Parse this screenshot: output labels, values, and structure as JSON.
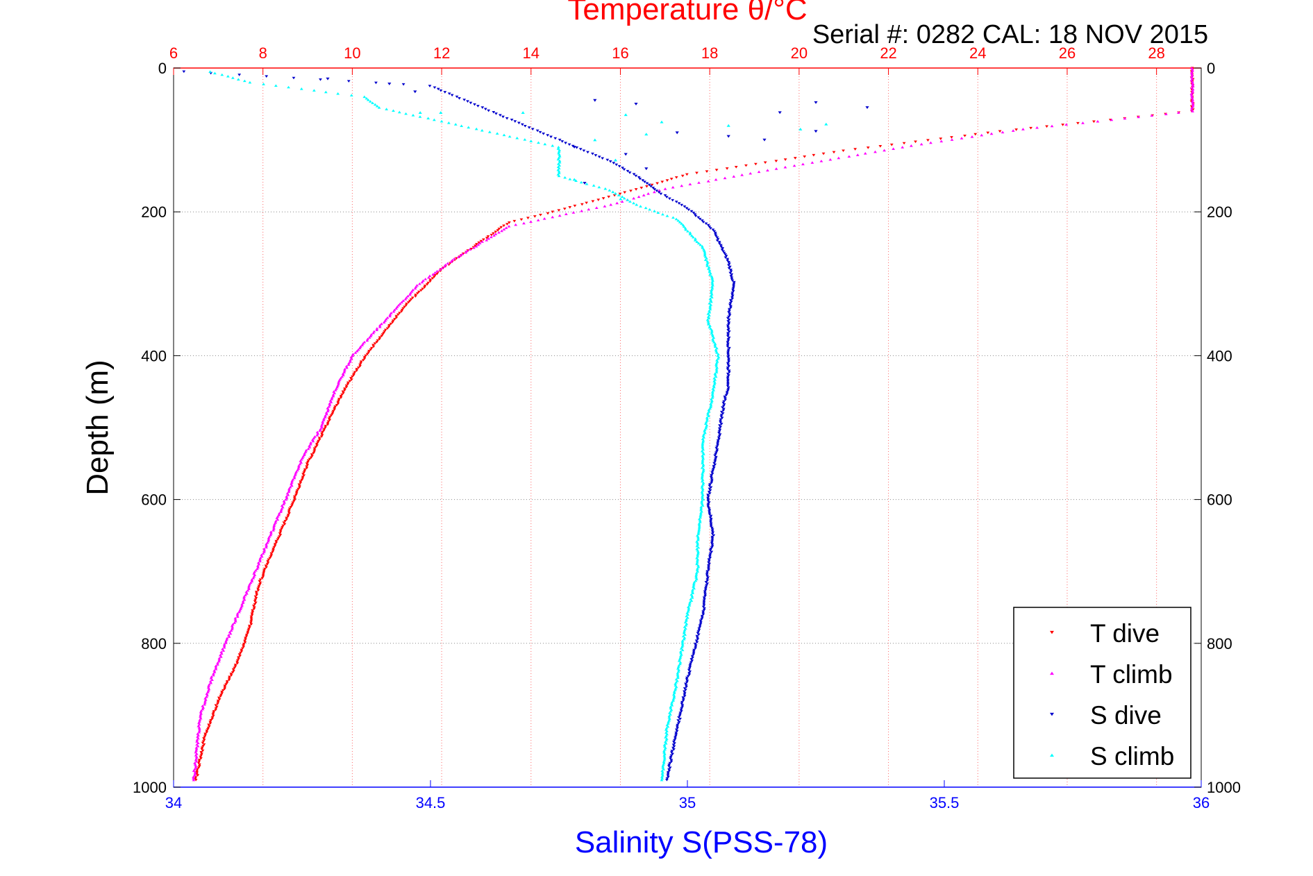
{
  "serial_label": "Serial #: 0282  CAL: 18 NOV 2015",
  "colors": {
    "temperature_axis": "#ff0000",
    "salinity_axis": "#0000ff",
    "t_dive": "#ff0000",
    "t_climb": "#ff00ff",
    "s_dive": "#0000cc",
    "s_climb": "#00ffff",
    "grid": "#888888"
  },
  "chart_data": {
    "type": "scatter",
    "title": "Temperature θ/°C",
    "ylabel": "Depth (m)",
    "xlabel_bottom": "Salinity S(PSS-78)",
    "xlabel_top": "Temperature θ/°C",
    "y_reversed": true,
    "ylim": [
      0,
      1000
    ],
    "xlim_bottom": [
      34,
      36
    ],
    "xlim_top": [
      6,
      29
    ],
    "yticks": [
      "0",
      "200",
      "400",
      "600",
      "800",
      "1000"
    ],
    "xticks_bottom": [
      "34",
      "34.5",
      "35",
      "35.5",
      "36"
    ],
    "xticks_top": [
      "6",
      "8",
      "10",
      "12",
      "14",
      "16",
      "18",
      "20",
      "22",
      "24",
      "26",
      "28"
    ],
    "grid": true,
    "legend_position": "bottom-right",
    "series": [
      {
        "name": "T dive",
        "axis": "temperature",
        "marker": "triangle-down",
        "points": [
          [
            28.8,
            0
          ],
          [
            28.8,
            20
          ],
          [
            28.8,
            40
          ],
          [
            28.8,
            60
          ],
          [
            27.3,
            70
          ],
          [
            24.5,
            88
          ],
          [
            21.0,
            115
          ],
          [
            17.5,
            148
          ],
          [
            16.0,
            175
          ],
          [
            14.5,
            200
          ],
          [
            13.5,
            215
          ],
          [
            12.8,
            245
          ],
          [
            12.0,
            280
          ],
          [
            11.2,
            330
          ],
          [
            10.8,
            360
          ],
          [
            10.3,
            400
          ],
          [
            9.8,
            450
          ],
          [
            9.4,
            500
          ],
          [
            9.0,
            550
          ],
          [
            8.7,
            600
          ],
          [
            8.3,
            660
          ],
          [
            7.9,
            720
          ],
          [
            7.7,
            780
          ],
          [
            7.4,
            830
          ],
          [
            7.0,
            880
          ],
          [
            6.7,
            930
          ],
          [
            6.5,
            990
          ]
        ]
      },
      {
        "name": "T climb",
        "axis": "temperature",
        "marker": "triangle-up",
        "points": [
          [
            28.8,
            0
          ],
          [
            28.8,
            40
          ],
          [
            28.8,
            60
          ],
          [
            27.0,
            72
          ],
          [
            25.0,
            85
          ],
          [
            22.5,
            108
          ],
          [
            19.5,
            140
          ],
          [
            17.0,
            168
          ],
          [
            15.8,
            190
          ],
          [
            14.8,
            203
          ],
          [
            13.5,
            220
          ],
          [
            12.3,
            265
          ],
          [
            11.5,
            300
          ],
          [
            10.6,
            360
          ],
          [
            10.0,
            400
          ],
          [
            9.6,
            450
          ],
          [
            9.3,
            500
          ],
          [
            8.9,
            540
          ],
          [
            8.5,
            600
          ],
          [
            8.1,
            660
          ],
          [
            7.7,
            720
          ],
          [
            7.3,
            780
          ],
          [
            6.9,
            840
          ],
          [
            6.6,
            900
          ],
          [
            6.45,
            990
          ]
        ]
      },
      {
        "name": "S dive",
        "axis": "salinity",
        "marker": "triangle-down",
        "points": [
          [
            34.02,
            5
          ],
          [
            34.5,
            25
          ],
          [
            34.85,
            130
          ],
          [
            34.9,
            150
          ],
          [
            34.95,
            175
          ],
          [
            35.0,
            195
          ],
          [
            35.05,
            225
          ],
          [
            35.08,
            270
          ],
          [
            35.09,
            300
          ],
          [
            35.08,
            350
          ],
          [
            35.08,
            400
          ],
          [
            35.08,
            440
          ],
          [
            35.07,
            470
          ],
          [
            35.06,
            520
          ],
          [
            35.04,
            600
          ],
          [
            35.05,
            650
          ],
          [
            35.04,
            700
          ],
          [
            35.03,
            760
          ],
          [
            35.0,
            850
          ],
          [
            34.98,
            920
          ],
          [
            34.96,
            990
          ]
        ]
      },
      {
        "name": "S climb",
        "axis": "salinity",
        "marker": "triangle-up",
        "points": [
          [
            34.07,
            5
          ],
          [
            34.15,
            20
          ],
          [
            34.37,
            40
          ],
          [
            34.4,
            55
          ],
          [
            34.75,
            110
          ],
          [
            34.75,
            150
          ],
          [
            34.85,
            170
          ],
          [
            34.9,
            190
          ],
          [
            34.98,
            210
          ],
          [
            35.03,
            250
          ],
          [
            35.05,
            300
          ],
          [
            35.04,
            350
          ],
          [
            35.06,
            400
          ],
          [
            35.05,
            450
          ],
          [
            35.03,
            520
          ],
          [
            35.03,
            600
          ],
          [
            35.02,
            650
          ],
          [
            35.02,
            700
          ],
          [
            35.0,
            760
          ],
          [
            34.98,
            850
          ],
          [
            34.96,
            920
          ],
          [
            34.95,
            990
          ]
        ]
      },
      {
        "name": "S dive",
        "axis": "salinity",
        "role": "scatter-shallow",
        "points": [
          [
            34.3,
            15
          ],
          [
            34.42,
            22
          ],
          [
            34.47,
            33
          ],
          [
            34.82,
            45
          ],
          [
            34.9,
            50
          ],
          [
            35.25,
            48
          ],
          [
            35.35,
            55
          ],
          [
            35.18,
            62
          ],
          [
            34.98,
            90
          ],
          [
            35.08,
            95
          ],
          [
            35.15,
            100
          ],
          [
            35.25,
            88
          ],
          [
            34.78,
            110
          ],
          [
            34.88,
            120
          ],
          [
            34.92,
            140
          ],
          [
            34.8,
            160
          ]
        ]
      },
      {
        "name": "S climb",
        "axis": "salinity",
        "role": "scatter-shallow",
        "points": [
          [
            34.48,
            62
          ],
          [
            34.52,
            62
          ],
          [
            34.68,
            62
          ],
          [
            34.88,
            65
          ],
          [
            34.95,
            75
          ],
          [
            35.08,
            80
          ],
          [
            35.22,
            85
          ],
          [
            35.27,
            78
          ],
          [
            34.92,
            92
          ],
          [
            34.82,
            100
          ],
          [
            34.86,
            128
          ],
          [
            34.78,
            155
          ],
          [
            34.87,
            182
          ]
        ]
      }
    ]
  },
  "legend": [
    {
      "label": "T dive",
      "color": "#ff0000",
      "marker": "triangle-down"
    },
    {
      "label": "T climb",
      "color": "#ff00ff",
      "marker": "triangle-up"
    },
    {
      "label": "S dive",
      "color": "#0000cc",
      "marker": "triangle-down"
    },
    {
      "label": "S climb",
      "color": "#00ffff",
      "marker": "triangle-up"
    }
  ]
}
